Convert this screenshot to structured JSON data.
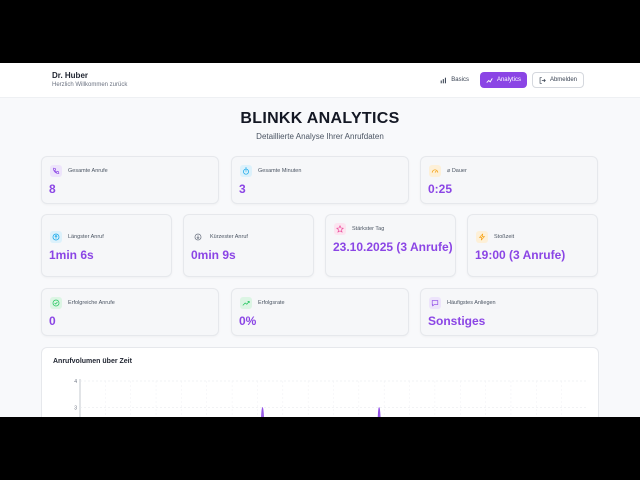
{
  "header": {
    "user_name": "Dr. Huber",
    "welcome": "Herzlich Willkommen zurück",
    "nav": [
      {
        "label": "Basics",
        "icon": "bar-chart-icon",
        "active": false
      },
      {
        "label": "Analytics",
        "icon": "trend-icon",
        "active": true
      },
      {
        "label": "Abmelden",
        "icon": "logout-icon",
        "active": false
      }
    ]
  },
  "page": {
    "title": "BLINKK ANALYTICS",
    "subtitle": "Detaillierte Analyse Ihrer Anrufdaten"
  },
  "stats_row1": [
    {
      "label": "Gesamte Anrufe",
      "value": "8",
      "icon": "phone-icon",
      "color": "#8b45e5",
      "bg": "#ede4fb"
    },
    {
      "label": "Gesamte Minuten",
      "value": "3",
      "icon": "timer-icon",
      "color": "#0ea5e9",
      "bg": "#dcf1fb"
    },
    {
      "label": "⌀ Dauer",
      "value": "0:25",
      "icon": "gauge-icon",
      "color": "#f59e0b",
      "bg": "#fdf0d8"
    }
  ],
  "stats_row2": [
    {
      "label": "Längster Anruf",
      "value": "1min 6s",
      "icon": "arrow-up-circle-icon",
      "color": "#0ea5e9",
      "bg": "#dcf1fb"
    },
    {
      "label": "Kürzester Anruf",
      "value": "0min 9s",
      "icon": "arrow-down-circle-icon",
      "color": "#6b7280",
      "bg": "#eceef1"
    },
    {
      "label": "Stärkster Tag",
      "value": "23.10.2025 (3 Anrufe)",
      "icon": "star-icon",
      "color": "#ec4899",
      "bg": "#fce4f0"
    },
    {
      "label": "Stoßzeit",
      "value": "19:00 (3 Anrufe)",
      "icon": "bolt-icon",
      "color": "#f59e0b",
      "bg": "#fdf0d8"
    }
  ],
  "stats_row3": [
    {
      "label": "Erfolgreiche Anrufe",
      "value": "0",
      "icon": "check-circle-icon",
      "color": "#22c55e",
      "bg": "#dcf5e4"
    },
    {
      "label": "Erfolgsrate",
      "value": "0%",
      "icon": "trend-up-icon",
      "color": "#22c55e",
      "bg": "#dcf5e4"
    },
    {
      "label": "Häufigstes Anliegen",
      "value": "Sonstiges",
      "icon": "message-icon",
      "color": "#8b45e5",
      "bg": "#ede4fb"
    }
  ],
  "chart": {
    "title": "Anrufvolumen über Zeit",
    "y_ticks": [
      "4",
      "3"
    ]
  },
  "chart_data": {
    "type": "area",
    "title": "Anrufvolumen über Zeit",
    "ylim": [
      0,
      4
    ],
    "y_ticks": [
      4,
      3
    ],
    "x": [
      0,
      1,
      2,
      3,
      4,
      5,
      6,
      7,
      8,
      9,
      10,
      11,
      12,
      13,
      14,
      15,
      16,
      17,
      18,
      19,
      20
    ],
    "values": [
      0,
      0,
      0,
      0,
      0,
      0,
      0,
      3,
      0,
      0,
      0,
      0,
      0,
      0,
      0,
      0,
      0,
      0,
      0,
      0,
      0
    ],
    "peaks_x": [
      7.2,
      11.8
    ],
    "peaks_y": [
      3,
      3
    ],
    "color": "#8b45e5"
  }
}
